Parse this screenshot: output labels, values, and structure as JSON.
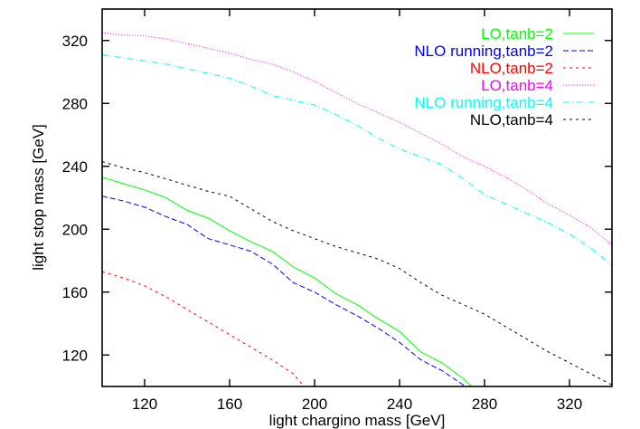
{
  "chart_data": {
    "type": "line",
    "title": "",
    "xlabel": "light chargino mass [GeV]",
    "ylabel": "light stop mass [GeV]",
    "xlim": [
      100,
      340
    ],
    "ylim": [
      100,
      340
    ],
    "xticks": [
      120,
      160,
      200,
      240,
      280,
      320
    ],
    "yticks": [
      120,
      160,
      200,
      240,
      280,
      320
    ],
    "grid": false,
    "legend_position": "top-right",
    "series": [
      {
        "name": "LO,tanb=2",
        "color": "#00ff00",
        "style": "solid",
        "x": [
          100,
          110,
          120,
          130,
          140,
          150,
          160,
          170,
          180,
          190,
          200,
          210,
          220,
          230,
          240,
          250,
          260,
          270,
          274
        ],
        "y": [
          233,
          229,
          225,
          220,
          212,
          207,
          199,
          192,
          186,
          176,
          169,
          159,
          152,
          143,
          135,
          122,
          115,
          105,
          100
        ]
      },
      {
        "name": "NLO running,tanb=2",
        "color": "#0000ff",
        "style": "dashed",
        "x": [
          100,
          110,
          120,
          130,
          140,
          150,
          160,
          170,
          180,
          190,
          200,
          210,
          220,
          230,
          240,
          250,
          260,
          270,
          271
        ],
        "y": [
          221,
          218,
          214,
          208,
          203,
          194,
          190,
          186,
          178,
          166,
          160,
          152,
          145,
          137,
          128,
          117,
          110,
          101,
          100
        ]
      },
      {
        "name": "NLO,tanb=2",
        "color": "#ff0000",
        "style": "short-dashed",
        "x": [
          100,
          110,
          120,
          130,
          140,
          150,
          160,
          170,
          180,
          190,
          195
        ],
        "y": [
          173,
          169,
          164,
          157,
          149,
          141,
          133,
          125,
          117,
          108,
          100
        ]
      },
      {
        "name": "LO,tanb=4",
        "color": "#ff00ff",
        "style": "dotted",
        "x": [
          100,
          110,
          120,
          130,
          140,
          150,
          160,
          170,
          180,
          190,
          200,
          210,
          220,
          230,
          240,
          250,
          260,
          270,
          280,
          290,
          300,
          310,
          320,
          330,
          340
        ],
        "y": [
          325,
          323.5,
          323,
          321,
          318,
          315,
          312,
          308,
          305,
          300,
          294,
          287,
          280,
          274,
          268,
          261,
          254,
          246,
          240,
          233,
          225,
          216,
          209,
          201,
          190
        ]
      },
      {
        "name": "NLO running,tanb=4",
        "color": "#00ffff",
        "style": "dash-dot",
        "x": [
          100,
          110,
          120,
          130,
          140,
          150,
          160,
          170,
          180,
          190,
          200,
          210,
          220,
          230,
          240,
          250,
          260,
          270,
          280,
          290,
          300,
          310,
          320,
          330,
          340
        ],
        "y": [
          311,
          309,
          307,
          305,
          302,
          299,
          296,
          291,
          285,
          282,
          279,
          273,
          266,
          258,
          251,
          246,
          241,
          232,
          222,
          216,
          210,
          204,
          197,
          188,
          177
        ]
      },
      {
        "name": "NLO,tanb=4",
        "color": "#000000",
        "style": "short-dashed",
        "x": [
          100,
          110,
          120,
          130,
          140,
          150,
          160,
          170,
          180,
          190,
          200,
          210,
          220,
          230,
          240,
          250,
          260,
          270,
          280,
          290,
          300,
          310,
          320,
          330,
          340
        ],
        "y": [
          243,
          239,
          236,
          232,
          228,
          224,
          221,
          213,
          205,
          199,
          194,
          189,
          185,
          181,
          175,
          166,
          158,
          152,
          146,
          138,
          130,
          122,
          115,
          108,
          101
        ]
      }
    ]
  }
}
